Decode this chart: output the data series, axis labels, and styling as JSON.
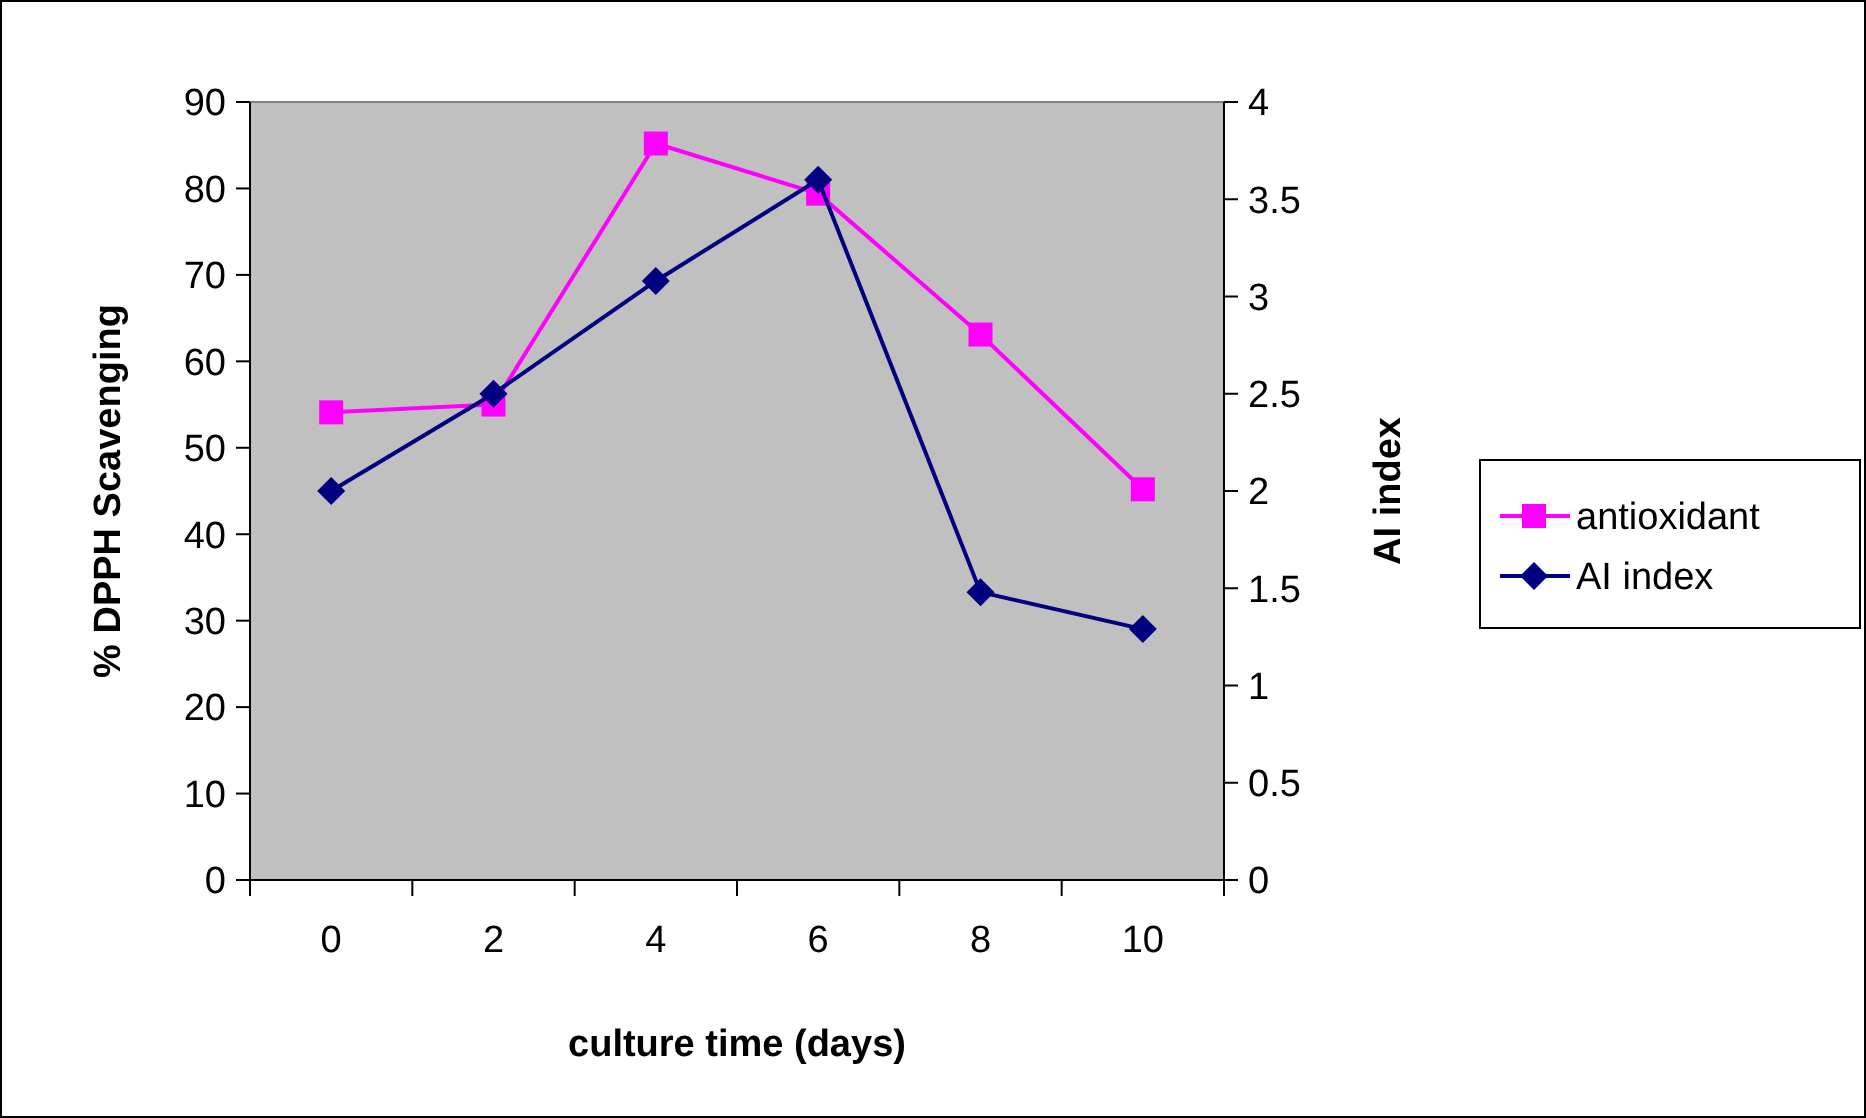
{
  "chart_data": {
    "type": "line",
    "xlabel": "culture time (days)",
    "ylabel": "% DPPH Scavenging",
    "y2label": "AI index",
    "categories": [
      "0",
      "2",
      "4",
      "6",
      "8",
      "10"
    ],
    "ylim": [
      0,
      90
    ],
    "yticks": [
      0,
      10,
      20,
      30,
      40,
      50,
      60,
      70,
      80,
      90
    ],
    "y2lim": [
      0,
      4
    ],
    "y2ticks": [
      0,
      0.5,
      1,
      1.5,
      2,
      2.5,
      3,
      3.5,
      4
    ],
    "legend": "right",
    "grid": false,
    "series": [
      {
        "name": "antioxidant",
        "color": "#ff00ff",
        "marker": "square",
        "values": [
          54.1,
          55,
          85.2,
          79.4,
          63.1,
          45.2
        ]
      },
      {
        "name": "AI index",
        "color": "#000080",
        "marker": "diamond",
        "axis": "y2",
        "values": [
          2,
          2.5,
          3.08,
          3.6,
          1.48,
          1.29
        ]
      }
    ]
  }
}
